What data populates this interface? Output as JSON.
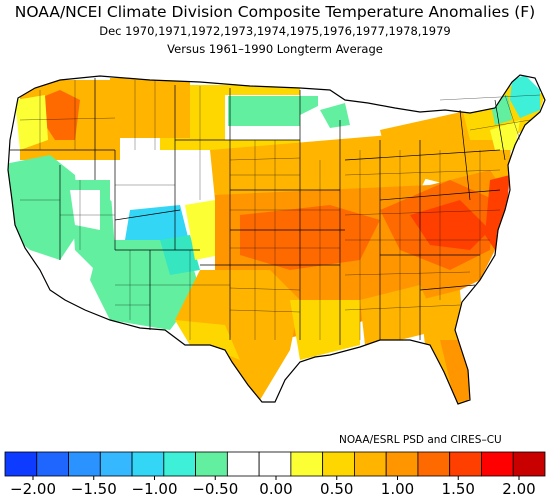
{
  "header": {
    "title": "NOAA/NCEI Climate Division Composite Temperature Anomalies (F)",
    "subtitle": "Dec  1970,1971,1972,1973,1974,1975,1976,1977,1978,1979",
    "baseline": "Versus 1961–1990 Longterm Average"
  },
  "credit": "NOAA/ESRL PSD and CIRES–CU",
  "legend": {
    "colors": [
      "#0d3bff",
      "#1f66ff",
      "#2a93ff",
      "#35b8ff",
      "#33d6f5",
      "#3ff0d8",
      "#62f0a0",
      "#ffffff",
      "#ffffff",
      "#fbff33",
      "#ffd700",
      "#ffb400",
      "#ff9600",
      "#ff6a00",
      "#ff3f00",
      "#ff0000",
      "#c80000"
    ],
    "tick_labels": [
      "−2.00",
      "−1.50",
      "−1.00",
      "−0.50",
      "0.00",
      "0.50",
      "1.00",
      "1.50",
      "2.00"
    ]
  },
  "map": {
    "anomaly_colors": {
      "near_zero": "#ffffff",
      "weak_negative": "#62f0a0",
      "moderate_negative": "#35e6c0",
      "strong_negative": "#33d6f5",
      "weak_positive": "#fbff33",
      "moderate_positive": "#ffd700",
      "strong_positive": "#ffb400",
      "very_warm": "#ff9600",
      "hot": "#ff6a00",
      "hottest": "#ff3f00"
    }
  }
}
